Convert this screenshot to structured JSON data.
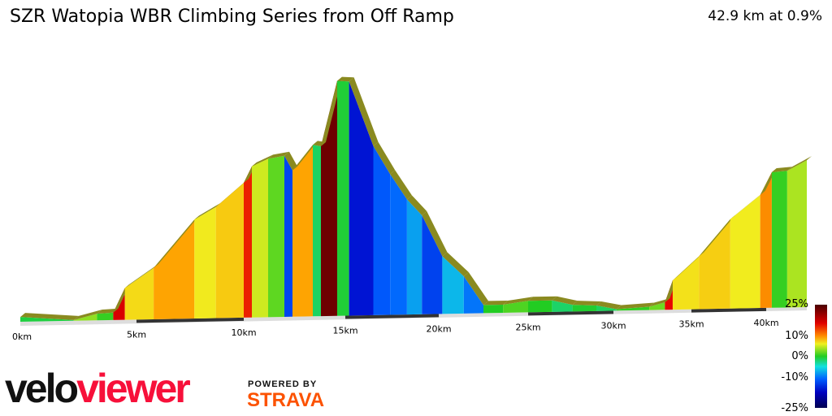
{
  "header": {
    "title": "SZR Watopia WBR Climbing Series from Off Ramp",
    "summary": "42.9 km at 0.9%"
  },
  "chart_data": {
    "type": "area",
    "title": "SZR Watopia WBR Climbing Series from Off Ramp",
    "xlabel": "",
    "ylabel": "",
    "x_unit": "km",
    "xlim": [
      0,
      42.9
    ],
    "x_ticks": [
      "0km",
      "5km",
      "10km",
      "15km",
      "20km",
      "25km",
      "30km",
      "35km",
      "40km"
    ],
    "profile": [
      [
        0,
        13
      ],
      [
        2.3,
        2
      ],
      [
        3.3,
        18
      ],
      [
        4.0,
        20
      ],
      [
        4.5,
        86
      ],
      [
        5.8,
        139
      ],
      [
        7.7,
        268
      ],
      [
        8.7,
        301
      ],
      [
        10,
        365
      ],
      [
        10.4,
        409
      ],
      [
        11.2,
        429
      ],
      [
        12.0,
        436
      ],
      [
        12.4,
        396
      ],
      [
        13.4,
        464
      ],
      [
        13.8,
        460
      ],
      [
        14.6,
        636
      ],
      [
        15.2,
        634
      ],
      [
        16.5,
        458
      ],
      [
        17.4,
        381
      ],
      [
        18.3,
        312
      ],
      [
        19.1,
        268
      ],
      [
        20.2,
        156
      ],
      [
        21.4,
        101
      ],
      [
        22.5,
        22
      ],
      [
        23.6,
        22
      ],
      [
        25,
        31
      ],
      [
        26.4,
        31
      ],
      [
        27.6,
        18
      ],
      [
        29.0,
        15
      ],
      [
        30.2,
        4
      ],
      [
        32.3,
        9
      ],
      [
        33.3,
        20
      ],
      [
        33.8,
        79
      ],
      [
        35.5,
        143
      ],
      [
        37.6,
        242
      ],
      [
        39.6,
        306
      ],
      [
        40.4,
        367
      ],
      [
        41.5,
        370
      ],
      [
        42.9,
        398
      ]
    ],
    "gradient_legend": {
      "labels": [
        "25%",
        "10%",
        "0%",
        "-10%",
        "-25%"
      ],
      "colors": [
        "#4a0000",
        "#e00000",
        "#ff7a00",
        "#f0f020",
        "#22cc22",
        "#11e0e0",
        "#0060ff",
        "#0000c0",
        "#000050"
      ]
    },
    "grid": false
  },
  "branding": {
    "logo_velo": "velo",
    "logo_viewer": "viewer",
    "powered": "POWERED BY",
    "strava": "STRAVA"
  }
}
